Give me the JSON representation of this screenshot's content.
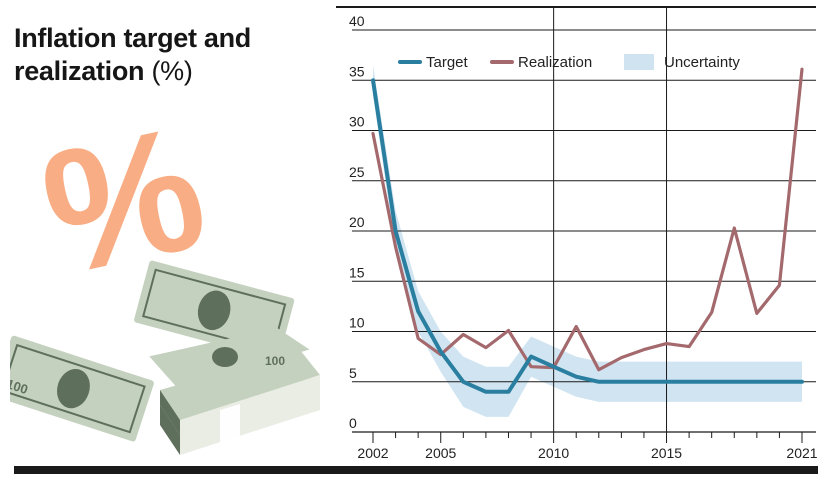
{
  "title": {
    "main": "Inflation target and realization",
    "unit": "(%)"
  },
  "illustration": {
    "symbol": "%",
    "banknote_label": "100",
    "colors": {
      "percent": "#f9ad84",
      "banknote": "#c5d1bf",
      "banknote_dark": "#5e6f5b"
    }
  },
  "chart_data": {
    "type": "line",
    "x_ticks": [
      2002,
      2005,
      2010,
      2015,
      2021
    ],
    "y_ticks": [
      0,
      5,
      10,
      15,
      20,
      25,
      30,
      35,
      40
    ],
    "xlim": [
      2002,
      2021
    ],
    "ylim": [
      0,
      40
    ],
    "grid": "horizontal",
    "legend_position": "top",
    "series": [
      {
        "name": "Target",
        "color": "#2a7fa0",
        "points": [
          [
            2002,
            35
          ],
          [
            2003,
            20
          ],
          [
            2004,
            12
          ],
          [
            2005,
            8
          ],
          [
            2006,
            5
          ],
          [
            2007,
            4
          ],
          [
            2008,
            4
          ],
          [
            2009,
            7.5
          ],
          [
            2010,
            6.5
          ],
          [
            2011,
            5.5
          ],
          [
            2012,
            5
          ],
          [
            2013,
            5
          ],
          [
            2014,
            5
          ],
          [
            2015,
            5
          ],
          [
            2016,
            5
          ],
          [
            2017,
            5
          ],
          [
            2018,
            5
          ],
          [
            2019,
            5
          ],
          [
            2020,
            5
          ],
          [
            2021,
            5
          ]
        ]
      },
      {
        "name": "Realization",
        "color": "#a3696d",
        "points": [
          [
            2002,
            29.7
          ],
          [
            2003,
            18.4
          ],
          [
            2004,
            9.3
          ],
          [
            2005,
            7.7
          ],
          [
            2006,
            9.7
          ],
          [
            2007,
            8.4
          ],
          [
            2008,
            10.1
          ],
          [
            2009,
            6.5
          ],
          [
            2010,
            6.4
          ],
          [
            2011,
            10.5
          ],
          [
            2012,
            6.2
          ],
          [
            2013,
            7.4
          ],
          [
            2014,
            8.2
          ],
          [
            2015,
            8.8
          ],
          [
            2016,
            8.5
          ],
          [
            2017,
            11.9
          ],
          [
            2018,
            20.3
          ],
          [
            2019,
            11.8
          ],
          [
            2020,
            14.6
          ],
          [
            2021,
            36.1
          ]
        ]
      }
    ],
    "uncertainty": {
      "name": "Uncertainty",
      "color": "#cfe3f0",
      "upper": [
        [
          2002,
          36.5
        ],
        [
          2003,
          22
        ],
        [
          2004,
          14
        ],
        [
          2005,
          10
        ],
        [
          2006,
          7.5
        ],
        [
          2007,
          6.5
        ],
        [
          2008,
          6.5
        ],
        [
          2009,
          9.5
        ],
        [
          2010,
          8.5
        ],
        [
          2011,
          7.5
        ],
        [
          2012,
          7
        ],
        [
          2013,
          7
        ],
        [
          2014,
          7
        ],
        [
          2015,
          7
        ],
        [
          2016,
          7
        ],
        [
          2017,
          7
        ],
        [
          2018,
          7
        ],
        [
          2019,
          7
        ],
        [
          2020,
          7
        ],
        [
          2021,
          7
        ]
      ],
      "lower": [
        [
          2002,
          33.5
        ],
        [
          2003,
          18
        ],
        [
          2004,
          10
        ],
        [
          2005,
          6
        ],
        [
          2006,
          2.5
        ],
        [
          2007,
          1.5
        ],
        [
          2008,
          1.5
        ],
        [
          2009,
          5.5
        ],
        [
          2010,
          4.5
        ],
        [
          2011,
          3.5
        ],
        [
          2012,
          3
        ],
        [
          2013,
          3
        ],
        [
          2014,
          3
        ],
        [
          2015,
          3
        ],
        [
          2016,
          3
        ],
        [
          2017,
          3
        ],
        [
          2018,
          3
        ],
        [
          2019,
          3
        ],
        [
          2020,
          3
        ],
        [
          2021,
          3
        ]
      ]
    }
  }
}
